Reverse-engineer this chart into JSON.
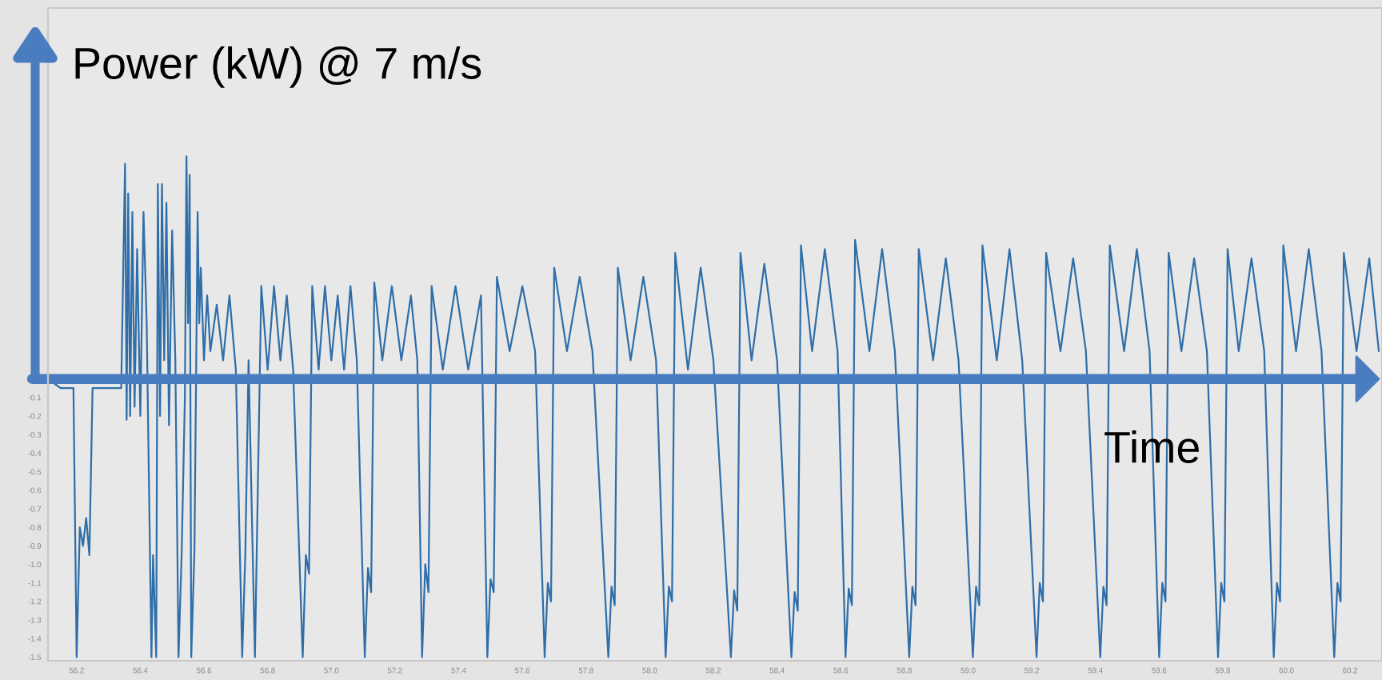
{
  "chart_data": {
    "type": "line",
    "ylabel": "Power (kW) @ 7 m/s",
    "xlabel": "Time",
    "series": [
      {
        "color": "#2f6ea8",
        "x": [
          56.11,
          56.15,
          56.19,
          56.2,
          56.21,
          56.22,
          56.23,
          56.24,
          56.25,
          56.34,
          56.352,
          56.357,
          56.362,
          56.368,
          56.375,
          56.382,
          56.39,
          56.4,
          56.41,
          56.42,
          56.435,
          56.44,
          56.45,
          56.455,
          56.462,
          56.468,
          56.475,
          56.482,
          56.49,
          56.5,
          56.51,
          56.52,
          56.53,
          56.54,
          56.545,
          56.55,
          56.555,
          56.56,
          56.57,
          56.58,
          56.585,
          56.59,
          56.6,
          56.61,
          56.62,
          56.64,
          56.66,
          56.68,
          56.7,
          56.72,
          56.73,
          56.74,
          56.76,
          56.78,
          56.8,
          56.82,
          56.84,
          56.86,
          56.88,
          56.91,
          56.92,
          56.93,
          56.94,
          56.96,
          56.98,
          57.0,
          57.02,
          57.04,
          57.06,
          57.08,
          57.105,
          57.115,
          57.125,
          57.135,
          57.16,
          57.19,
          57.22,
          57.25,
          57.27,
          57.285,
          57.295,
          57.305,
          57.315,
          57.35,
          57.39,
          57.43,
          57.47,
          57.49,
          57.5,
          57.51,
          57.52,
          57.56,
          57.6,
          57.64,
          57.67,
          57.68,
          57.69,
          57.7,
          57.74,
          57.78,
          57.82,
          57.87,
          57.88,
          57.89,
          57.9,
          57.94,
          57.98,
          58.02,
          58.05,
          58.06,
          58.07,
          58.08,
          58.12,
          58.16,
          58.2,
          58.255,
          58.265,
          58.275,
          58.285,
          58.32,
          58.36,
          58.4,
          58.445,
          58.455,
          58.465,
          58.475,
          58.51,
          58.55,
          58.59,
          58.615,
          58.625,
          58.635,
          58.645,
          58.69,
          58.73,
          58.77,
          58.815,
          58.825,
          58.835,
          58.845,
          58.89,
          58.93,
          58.97,
          59.015,
          59.025,
          59.035,
          59.045,
          59.09,
          59.13,
          59.17,
          59.215,
          59.225,
          59.235,
          59.245,
          59.29,
          59.33,
          59.37,
          59.415,
          59.425,
          59.435,
          59.445,
          59.49,
          59.53,
          59.57,
          59.6,
          59.61,
          59.62,
          59.63,
          59.67,
          59.71,
          59.75,
          59.785,
          59.795,
          59.805,
          59.815,
          59.85,
          59.89,
          59.93,
          59.96,
          59.97,
          59.98,
          59.99,
          60.03,
          60.07,
          60.11,
          60.15,
          60.16,
          60.17,
          60.18,
          60.22,
          60.26,
          60.29
        ],
        "values": [
          0.0,
          -0.05,
          -0.05,
          -1.5,
          -0.8,
          -0.9,
          -0.75,
          -0.95,
          -0.05,
          -0.05,
          1.16,
          -0.22,
          1.0,
          -0.2,
          0.9,
          -0.15,
          0.7,
          -0.2,
          0.9,
          0.3,
          -1.5,
          -0.95,
          -1.5,
          1.05,
          -0.2,
          1.05,
          0.1,
          0.95,
          -0.25,
          0.8,
          0.1,
          -1.5,
          -0.93,
          -0.1,
          1.2,
          0.3,
          1.1,
          -1.5,
          -0.93,
          0.9,
          0.3,
          0.6,
          0.1,
          0.45,
          0.15,
          0.4,
          0.1,
          0.45,
          0.05,
          -1.5,
          -0.93,
          0.1,
          -1.5,
          0.5,
          0.05,
          0.5,
          0.1,
          0.45,
          0.05,
          -1.5,
          -0.95,
          -1.05,
          0.5,
          0.05,
          0.5,
          0.1,
          0.45,
          0.05,
          0.5,
          0.1,
          -1.5,
          -1.02,
          -1.15,
          0.52,
          0.1,
          0.5,
          0.1,
          0.45,
          0.1,
          -1.5,
          -1.0,
          -1.15,
          0.5,
          0.05,
          0.5,
          0.05,
          0.45,
          -1.5,
          -1.08,
          -1.15,
          0.55,
          0.15,
          0.5,
          0.15,
          -1.5,
          -1.1,
          -1.2,
          0.6,
          0.15,
          0.55,
          0.15,
          -1.5,
          -1.12,
          -1.22,
          0.6,
          0.1,
          0.55,
          0.1,
          -1.5,
          -1.12,
          -1.2,
          0.68,
          0.05,
          0.6,
          0.1,
          -1.5,
          -1.14,
          -1.25,
          0.68,
          0.1,
          0.62,
          0.1,
          -1.5,
          -1.15,
          -1.25,
          0.72,
          0.15,
          0.7,
          0.15,
          -1.5,
          -1.13,
          -1.22,
          0.75,
          0.15,
          0.7,
          0.15,
          -1.5,
          -1.12,
          -1.22,
          0.7,
          0.1,
          0.65,
          0.1,
          -1.5,
          -1.12,
          -1.22,
          0.72,
          0.1,
          0.7,
          0.1,
          -1.5,
          -1.1,
          -1.2,
          0.68,
          0.15,
          0.65,
          0.15,
          -1.5,
          -1.12,
          -1.22,
          0.72,
          0.15,
          0.7,
          0.15,
          -1.5,
          -1.1,
          -1.2,
          0.68,
          0.15,
          0.65,
          0.15,
          -1.5,
          -1.1,
          -1.2,
          0.7,
          0.15,
          0.65,
          0.15,
          -1.5,
          -1.1,
          -1.2,
          0.72,
          0.15,
          0.7,
          0.15,
          -1.5,
          -1.1,
          -1.2,
          0.68,
          0.15,
          0.65,
          0.15
        ]
      }
    ],
    "ref_lines": [
      {
        "axis": "y",
        "value": 0,
        "color": "#4a7cc0"
      }
    ],
    "xlim": [
      56.11,
      60.3
    ],
    "ylim": [
      -1.52,
      2.0
    ],
    "xticks": [
      56.2,
      56.4,
      56.6,
      56.8,
      {
        "value": 57,
        "label": "57.0"
      },
      57.2,
      57.4,
      57.6,
      57.8,
      {
        "value": 58,
        "label": "58.0"
      },
      58.2,
      58.4,
      58.6,
      58.8,
      {
        "value": 59,
        "label": "59.0"
      },
      59.2,
      59.4,
      59.6,
      59.8,
      {
        "value": 60,
        "label": "60.0"
      },
      60.2
    ],
    "yticks": [
      -1.5,
      -1.4,
      -1.3,
      -1.2,
      -1.1,
      {
        "value": -1,
        "label": "-1.0"
      },
      -0.9,
      -0.8,
      -0.7,
      -0.6,
      -0.5,
      -0.4,
      -0.3,
      -0.2,
      -0.1
    ]
  }
}
